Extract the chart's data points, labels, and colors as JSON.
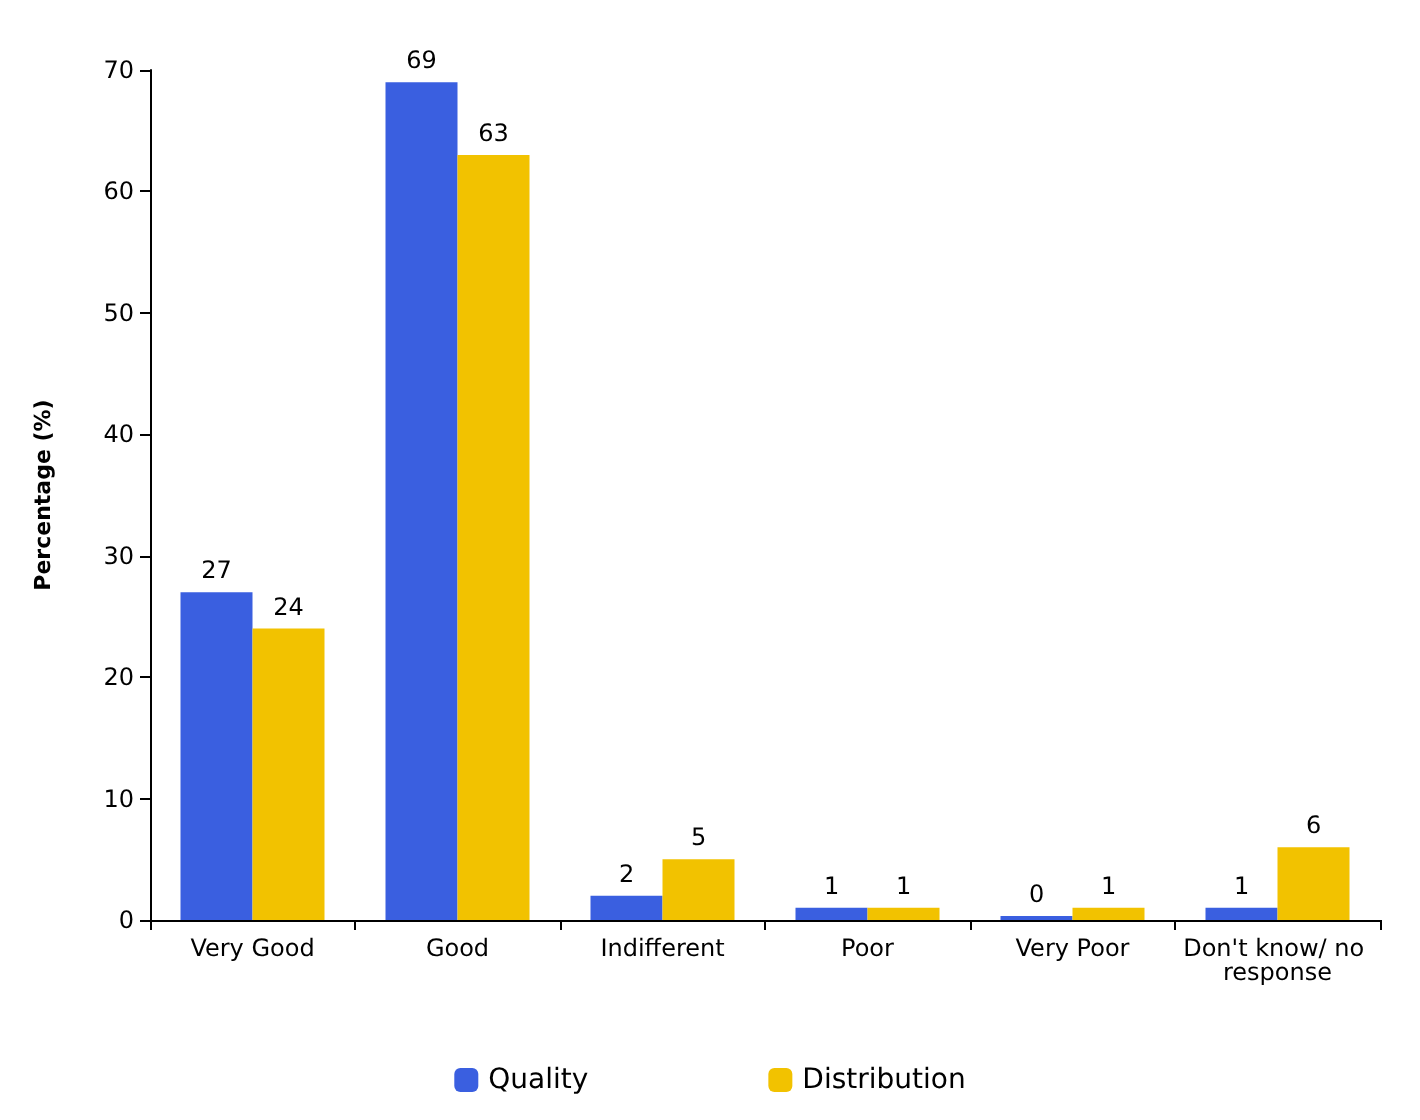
{
  "chart_data": {
    "type": "bar",
    "ylabel": "Percentage (%)",
    "categories": [
      "Very Good",
      "Good",
      "Indifferent",
      "Poor",
      "Very Poor",
      "Don't know/ no response"
    ],
    "series": [
      {
        "name": "Quality",
        "color": "#3a5fe0",
        "values": [
          27,
          69,
          2,
          1,
          0,
          1
        ]
      },
      {
        "name": "Distribution",
        "color": "#f2c200",
        "values": [
          24,
          63,
          5,
          1,
          1,
          6
        ]
      }
    ],
    "ylim": [
      0,
      70
    ],
    "yticks": [
      0,
      10,
      20,
      30,
      40,
      50,
      60,
      70
    ],
    "grid": false,
    "legend": "bottom",
    "data_labels": true
  }
}
